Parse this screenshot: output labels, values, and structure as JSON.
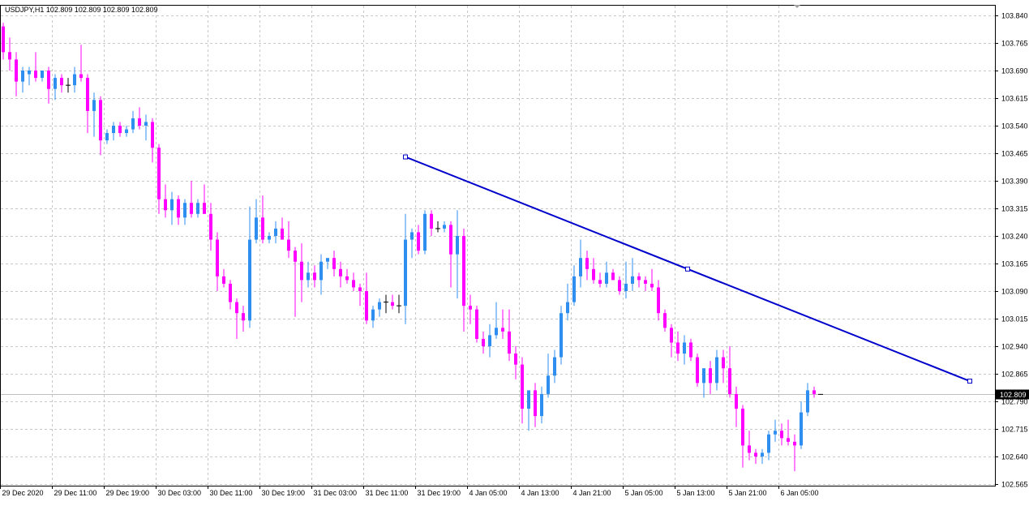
{
  "header": {
    "symbol_info": "USDJPY,H1  102.809 102.809 102.809 102.809"
  },
  "chart_data": {
    "type": "candlestick",
    "title": "USDJPY,H1  102.809 102.809 102.809 102.809",
    "symbol": "USDJPY",
    "timeframe": "H1",
    "grid": true,
    "ylim": [
      102.565,
      103.855
    ],
    "y_ticks": [
      "103.840",
      "103.765",
      "103.690",
      "103.615",
      "103.540",
      "103.465",
      "103.390",
      "103.315",
      "103.240",
      "103.165",
      "103.090",
      "103.015",
      "102.940",
      "102.865",
      "102.790",
      "102.715",
      "102.640",
      "102.565"
    ],
    "x_ticks": [
      "29 Dec 2020",
      "29 Dec 11:00",
      "29 Dec 19:00",
      "30 Dec 03:00",
      "30 Dec 11:00",
      "30 Dec 19:00",
      "31 Dec 03:00",
      "31 Dec 11:00",
      "31 Dec 19:00",
      "4 Jan 05:00",
      "4 Jan 13:00",
      "4 Jan 21:00",
      "5 Jan 05:00",
      "5 Jan 13:00",
      "5 Jan 21:00",
      "6 Jan 05:00"
    ],
    "x_tick_bar_index": [
      0,
      8,
      16,
      24,
      32,
      40,
      48,
      56,
      64,
      72,
      80,
      88,
      96,
      104,
      112,
      120
    ],
    "current_price": "102.809",
    "up_color": "#2e8ff0",
    "down_color": "#ff00ff",
    "doji_color": "#000000",
    "trendline_color": "#0000cc",
    "grid_color": "#c8c8c8",
    "trendline": {
      "points": [
        {
          "bar": 62,
          "price": 103.455
        },
        {
          "bar": 105.5,
          "price": 103.15
        },
        {
          "bar": 149,
          "price": 102.845
        }
      ]
    },
    "candles": [
      {
        "o": 103.81,
        "h": 103.82,
        "l": 103.72,
        "c": 103.74
      },
      {
        "o": 103.74,
        "h": 103.78,
        "l": 103.69,
        "c": 103.72
      },
      {
        "o": 103.72,
        "h": 103.74,
        "l": 103.62,
        "c": 103.66
      },
      {
        "o": 103.66,
        "h": 103.7,
        "l": 103.63,
        "c": 103.69
      },
      {
        "o": 103.68,
        "h": 103.7,
        "l": 103.65,
        "c": 103.69
      },
      {
        "o": 103.69,
        "h": 103.74,
        "l": 103.66,
        "c": 103.67
      },
      {
        "o": 103.67,
        "h": 103.69,
        "l": 103.66,
        "c": 103.69
      },
      {
        "o": 103.69,
        "h": 103.7,
        "l": 103.6,
        "c": 103.64
      },
      {
        "o": 103.64,
        "h": 103.68,
        "l": 103.61,
        "c": 103.67
      },
      {
        "o": 103.67,
        "h": 103.68,
        "l": 103.63,
        "c": 103.65
      },
      {
        "o": 103.65,
        "h": 103.67,
        "l": 103.63,
        "c": 103.65
      },
      {
        "o": 103.65,
        "h": 103.7,
        "l": 103.63,
        "c": 103.68
      },
      {
        "o": 103.68,
        "h": 103.76,
        "l": 103.66,
        "c": 103.67
      },
      {
        "o": 103.67,
        "h": 103.68,
        "l": 103.52,
        "c": 103.58
      },
      {
        "o": 103.58,
        "h": 103.63,
        "l": 103.51,
        "c": 103.61
      },
      {
        "o": 103.61,
        "h": 103.62,
        "l": 103.46,
        "c": 103.5
      },
      {
        "o": 103.5,
        "h": 103.53,
        "l": 103.49,
        "c": 103.52
      },
      {
        "o": 103.52,
        "h": 103.55,
        "l": 103.5,
        "c": 103.54
      },
      {
        "o": 103.54,
        "h": 103.55,
        "l": 103.51,
        "c": 103.52
      },
      {
        "o": 103.52,
        "h": 103.54,
        "l": 103.51,
        "c": 103.53
      },
      {
        "o": 103.53,
        "h": 103.58,
        "l": 103.52,
        "c": 103.56
      },
      {
        "o": 103.56,
        "h": 103.59,
        "l": 103.53,
        "c": 103.54
      },
      {
        "o": 103.54,
        "h": 103.57,
        "l": 103.5,
        "c": 103.55
      },
      {
        "o": 103.55,
        "h": 103.56,
        "l": 103.44,
        "c": 103.48
      },
      {
        "o": 103.48,
        "h": 103.49,
        "l": 103.3,
        "c": 103.34
      },
      {
        "o": 103.34,
        "h": 103.38,
        "l": 103.29,
        "c": 103.31
      },
      {
        "o": 103.31,
        "h": 103.36,
        "l": 103.27,
        "c": 103.34
      },
      {
        "o": 103.34,
        "h": 103.35,
        "l": 103.27,
        "c": 103.29
      },
      {
        "o": 103.29,
        "h": 103.34,
        "l": 103.27,
        "c": 103.33
      },
      {
        "o": 103.33,
        "h": 103.39,
        "l": 103.29,
        "c": 103.3
      },
      {
        "o": 103.3,
        "h": 103.34,
        "l": 103.29,
        "c": 103.33
      },
      {
        "o": 103.33,
        "h": 103.38,
        "l": 103.3,
        "c": 103.3
      },
      {
        "o": 103.3,
        "h": 103.33,
        "l": 103.2,
        "c": 103.23
      },
      {
        "o": 103.23,
        "h": 103.25,
        "l": 103.09,
        "c": 103.13
      },
      {
        "o": 103.13,
        "h": 103.15,
        "l": 103.1,
        "c": 103.11
      },
      {
        "o": 103.11,
        "h": 103.12,
        "l": 103.04,
        "c": 103.06
      },
      {
        "o": 103.06,
        "h": 103.07,
        "l": 102.96,
        "c": 103.03
      },
      {
        "o": 103.03,
        "h": 103.05,
        "l": 102.98,
        "c": 103.01
      },
      {
        "o": 103.01,
        "h": 103.32,
        "l": 102.99,
        "c": 103.23
      },
      {
        "o": 103.23,
        "h": 103.34,
        "l": 103.22,
        "c": 103.29
      },
      {
        "o": 103.29,
        "h": 103.35,
        "l": 103.22,
        "c": 103.23
      },
      {
        "o": 103.23,
        "h": 103.25,
        "l": 103.22,
        "c": 103.24
      },
      {
        "o": 103.24,
        "h": 103.28,
        "l": 103.22,
        "c": 103.26
      },
      {
        "o": 103.26,
        "h": 103.29,
        "l": 103.23,
        "c": 103.23
      },
      {
        "o": 103.23,
        "h": 103.28,
        "l": 103.18,
        "c": 103.2
      },
      {
        "o": 103.2,
        "h": 103.21,
        "l": 103.02,
        "c": 103.17
      },
      {
        "o": 103.17,
        "h": 103.22,
        "l": 103.06,
        "c": 103.12
      },
      {
        "o": 103.12,
        "h": 103.17,
        "l": 103.1,
        "c": 103.14
      },
      {
        "o": 103.14,
        "h": 103.16,
        "l": 103.1,
        "c": 103.12
      },
      {
        "o": 103.12,
        "h": 103.19,
        "l": 103.08,
        "c": 103.17
      },
      {
        "o": 103.17,
        "h": 103.18,
        "l": 103.15,
        "c": 103.18
      },
      {
        "o": 103.18,
        "h": 103.2,
        "l": 103.13,
        "c": 103.15
      },
      {
        "o": 103.15,
        "h": 103.17,
        "l": 103.1,
        "c": 103.13
      },
      {
        "o": 103.13,
        "h": 103.15,
        "l": 103.11,
        "c": 103.12
      },
      {
        "o": 103.12,
        "h": 103.14,
        "l": 103.09,
        "c": 103.1
      },
      {
        "o": 103.1,
        "h": 103.11,
        "l": 103.05,
        "c": 103.09
      },
      {
        "o": 103.09,
        "h": 103.14,
        "l": 103.0,
        "c": 103.01
      },
      {
        "o": 103.01,
        "h": 103.05,
        "l": 102.99,
        "c": 103.04
      },
      {
        "o": 103.04,
        "h": 103.07,
        "l": 103.02,
        "c": 103.06
      },
      {
        "o": 103.06,
        "h": 103.08,
        "l": 103.03,
        "c": 103.06
      },
      {
        "o": 103.06,
        "h": 103.08,
        "l": 103.04,
        "c": 103.05
      },
      {
        "o": 103.05,
        "h": 103.08,
        "l": 103.03,
        "c": 103.05
      },
      {
        "o": 103.05,
        "h": 103.3,
        "l": 103.0,
        "c": 103.23
      },
      {
        "o": 103.23,
        "h": 103.26,
        "l": 103.18,
        "c": 103.25
      },
      {
        "o": 103.25,
        "h": 103.27,
        "l": 103.19,
        "c": 103.2
      },
      {
        "o": 103.2,
        "h": 103.31,
        "l": 103.19,
        "c": 103.3
      },
      {
        "o": 103.3,
        "h": 103.31,
        "l": 103.24,
        "c": 103.26
      },
      {
        "o": 103.26,
        "h": 103.28,
        "l": 103.25,
        "c": 103.26
      },
      {
        "o": 103.26,
        "h": 103.28,
        "l": 103.25,
        "c": 103.27
      },
      {
        "o": 103.27,
        "h": 103.28,
        "l": 103.1,
        "c": 103.19
      },
      {
        "o": 103.19,
        "h": 103.31,
        "l": 103.07,
        "c": 103.24
      },
      {
        "o": 103.24,
        "h": 103.26,
        "l": 102.98,
        "c": 103.05
      },
      {
        "o": 103.05,
        "h": 103.08,
        "l": 103.0,
        "c": 103.04
      },
      {
        "o": 103.04,
        "h": 103.05,
        "l": 102.95,
        "c": 102.96
      },
      {
        "o": 102.96,
        "h": 102.98,
        "l": 102.92,
        "c": 102.94
      },
      {
        "o": 102.94,
        "h": 103.0,
        "l": 102.91,
        "c": 102.97
      },
      {
        "o": 102.97,
        "h": 103.06,
        "l": 102.96,
        "c": 102.99
      },
      {
        "o": 102.99,
        "h": 103.04,
        "l": 102.96,
        "c": 102.98
      },
      {
        "o": 102.98,
        "h": 103.04,
        "l": 102.9,
        "c": 102.92
      },
      {
        "o": 102.92,
        "h": 102.94,
        "l": 102.85,
        "c": 102.89
      },
      {
        "o": 102.89,
        "h": 102.91,
        "l": 102.73,
        "c": 102.77
      },
      {
        "o": 102.77,
        "h": 102.81,
        "l": 102.71,
        "c": 102.82
      },
      {
        "o": 102.82,
        "h": 102.84,
        "l": 102.72,
        "c": 102.75
      },
      {
        "o": 102.75,
        "h": 102.83,
        "l": 102.73,
        "c": 102.81
      },
      {
        "o": 102.81,
        "h": 102.92,
        "l": 102.8,
        "c": 102.86
      },
      {
        "o": 102.86,
        "h": 102.93,
        "l": 102.84,
        "c": 102.91
      },
      {
        "o": 102.91,
        "h": 103.05,
        "l": 102.89,
        "c": 103.03
      },
      {
        "o": 103.03,
        "h": 103.11,
        "l": 103.01,
        "c": 103.06
      },
      {
        "o": 103.06,
        "h": 103.16,
        "l": 103.05,
        "c": 103.13
      },
      {
        "o": 103.13,
        "h": 103.23,
        "l": 103.1,
        "c": 103.18
      },
      {
        "o": 103.18,
        "h": 103.2,
        "l": 103.12,
        "c": 103.15
      },
      {
        "o": 103.15,
        "h": 103.18,
        "l": 103.11,
        "c": 103.12
      },
      {
        "o": 103.12,
        "h": 103.14,
        "l": 103.1,
        "c": 103.11
      },
      {
        "o": 103.11,
        "h": 103.17,
        "l": 103.1,
        "c": 103.14
      },
      {
        "o": 103.14,
        "h": 103.15,
        "l": 103.12,
        "c": 103.12
      },
      {
        "o": 103.12,
        "h": 103.13,
        "l": 103.08,
        "c": 103.09
      },
      {
        "o": 103.09,
        "h": 103.17,
        "l": 103.07,
        "c": 103.11
      },
      {
        "o": 103.11,
        "h": 103.18,
        "l": 103.09,
        "c": 103.13
      },
      {
        "o": 103.13,
        "h": 103.14,
        "l": 103.1,
        "c": 103.12
      },
      {
        "o": 103.12,
        "h": 103.13,
        "l": 103.09,
        "c": 103.11
      },
      {
        "o": 103.11,
        "h": 103.15,
        "l": 103.09,
        "c": 103.1
      },
      {
        "o": 103.1,
        "h": 103.12,
        "l": 103.01,
        "c": 103.03
      },
      {
        "o": 103.03,
        "h": 103.04,
        "l": 102.98,
        "c": 102.99
      },
      {
        "o": 102.99,
        "h": 103.0,
        "l": 102.91,
        "c": 102.95
      },
      {
        "o": 102.95,
        "h": 102.98,
        "l": 102.9,
        "c": 102.92
      },
      {
        "o": 102.92,
        "h": 102.97,
        "l": 102.89,
        "c": 102.95
      },
      {
        "o": 102.95,
        "h": 102.96,
        "l": 102.9,
        "c": 102.91
      },
      {
        "o": 102.91,
        "h": 102.92,
        "l": 102.83,
        "c": 102.84
      },
      {
        "o": 102.84,
        "h": 102.88,
        "l": 102.8,
        "c": 102.88
      },
      {
        "o": 102.88,
        "h": 102.9,
        "l": 102.81,
        "c": 102.84
      },
      {
        "o": 102.84,
        "h": 102.93,
        "l": 102.82,
        "c": 102.91
      },
      {
        "o": 102.91,
        "h": 102.93,
        "l": 102.84,
        "c": 102.88
      },
      {
        "o": 102.88,
        "h": 102.94,
        "l": 102.8,
        "c": 102.81
      },
      {
        "o": 102.81,
        "h": 102.83,
        "l": 102.72,
        "c": 102.77
      },
      {
        "o": 102.77,
        "h": 102.78,
        "l": 102.61,
        "c": 102.67
      },
      {
        "o": 102.67,
        "h": 102.71,
        "l": 102.63,
        "c": 102.65
      },
      {
        "o": 102.65,
        "h": 102.66,
        "l": 102.62,
        "c": 102.64
      },
      {
        "o": 102.64,
        "h": 102.66,
        "l": 102.62,
        "c": 102.65
      },
      {
        "o": 102.65,
        "h": 102.71,
        "l": 102.63,
        "c": 102.7
      },
      {
        "o": 102.7,
        "h": 102.74,
        "l": 102.68,
        "c": 102.71
      },
      {
        "o": 102.71,
        "h": 102.73,
        "l": 102.67,
        "c": 102.69
      },
      {
        "o": 102.69,
        "h": 102.74,
        "l": 102.67,
        "c": 102.68
      },
      {
        "o": 102.68,
        "h": 102.7,
        "l": 102.6,
        "c": 102.67
      },
      {
        "o": 102.67,
        "h": 102.79,
        "l": 102.66,
        "c": 102.76
      },
      {
        "o": 102.76,
        "h": 102.84,
        "l": 102.75,
        "c": 102.82
      },
      {
        "o": 102.82,
        "h": 102.83,
        "l": 102.8,
        "c": 102.81
      },
      {
        "o": 102.809,
        "h": 102.809,
        "l": 102.809,
        "c": 102.809
      }
    ]
  }
}
